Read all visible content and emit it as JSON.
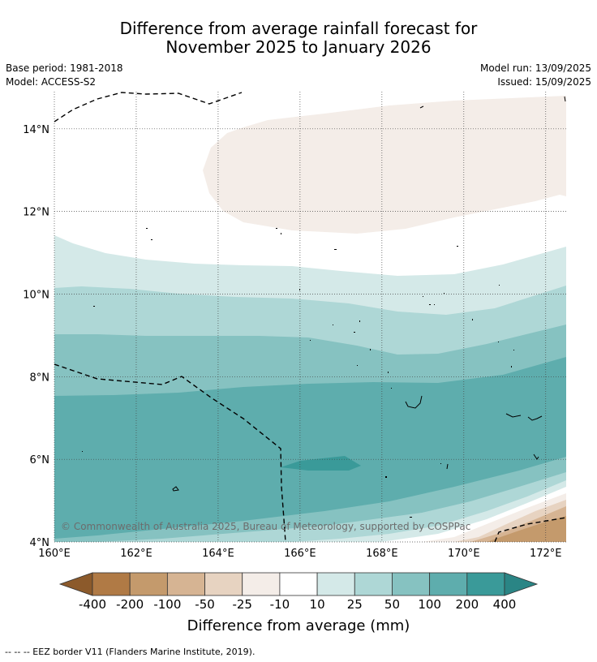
{
  "title_line1": "Difference from average rainfall forecast for",
  "title_line2": "November 2025 to January 2026",
  "base_period": "Base period: 1981-2018",
  "model": "Model: ACCESS-S2",
  "model_run": "Model run: 13/09/2025",
  "issued": "Issued: 15/09/2025",
  "copyright": "© Commonwealth of Australia 2025, Bureau of Meteorology, supported by COSPPac",
  "map": {
    "lon_ticks": [
      "160°E",
      "162°E",
      "164°E",
      "166°E",
      "168°E",
      "170°E",
      "172°E"
    ],
    "lat_ticks": [
      "14°N",
      "12°N",
      "10°N",
      "8°N",
      "6°N",
      "4°N"
    ],
    "lon_values": [
      160,
      162,
      164,
      166,
      168,
      170,
      172
    ],
    "lat_values": [
      14,
      12,
      10,
      8,
      6,
      4
    ],
    "lon_range": [
      160,
      172.5
    ],
    "lat_range": [
      4,
      14.9
    ]
  },
  "colorbar": {
    "labels": [
      "-400",
      "-200",
      "-100",
      "-50",
      "-25",
      "-10",
      "10",
      "25",
      "50",
      "100",
      "200",
      "400"
    ],
    "colors": [
      "#8c5a2b",
      "#b07a45",
      "#c49a6c",
      "#d6b493",
      "#e7d3c1",
      "#f4ede8",
      "#ffffff",
      "#d4e9e8",
      "#aed7d6",
      "#86c2c1",
      "#5eadad",
      "#3a9a99",
      "#2a8585"
    ],
    "title": "Difference from average (mm)"
  },
  "legend_note": "--  --  -- EEZ border V11 (Flanders Marine Institute, 2019)."
}
